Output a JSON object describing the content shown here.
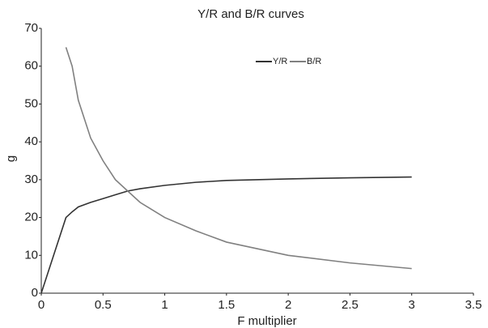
{
  "chart_data": {
    "type": "line",
    "title": "Y/R and B/R curves",
    "x_label": "F  multiplier",
    "y_label": "g",
    "x": [
      0,
      0.1,
      0.2,
      0.25,
      0.3,
      0.4,
      0.5,
      0.6,
      0.7,
      0.8,
      1,
      1.25,
      1.5,
      2,
      2.5,
      3
    ],
    "series": [
      {
        "name": "Y/R",
        "color": "#333333",
        "values": [
          0,
          10,
          20,
          21.5,
          22.8,
          24,
          25,
          26,
          27,
          27.6,
          28.5,
          29.3,
          29.8,
          30.2,
          30.5,
          30.7
        ]
      },
      {
        "name": "B/R",
        "color": "#808080",
        "values": [
          null,
          null,
          65,
          60,
          51,
          41,
          35,
          30,
          27,
          24,
          20,
          16.5,
          13.5,
          10,
          8,
          6.5
        ]
      }
    ],
    "xlim": [
      0,
      3.5
    ],
    "xticks": [
      0,
      0.5,
      1,
      1.5,
      2,
      2.5,
      3,
      3.5
    ],
    "ylim": [
      0,
      70
    ],
    "yticks": [
      0,
      10,
      20,
      30,
      40,
      50,
      60,
      70
    ],
    "grid": false
  }
}
